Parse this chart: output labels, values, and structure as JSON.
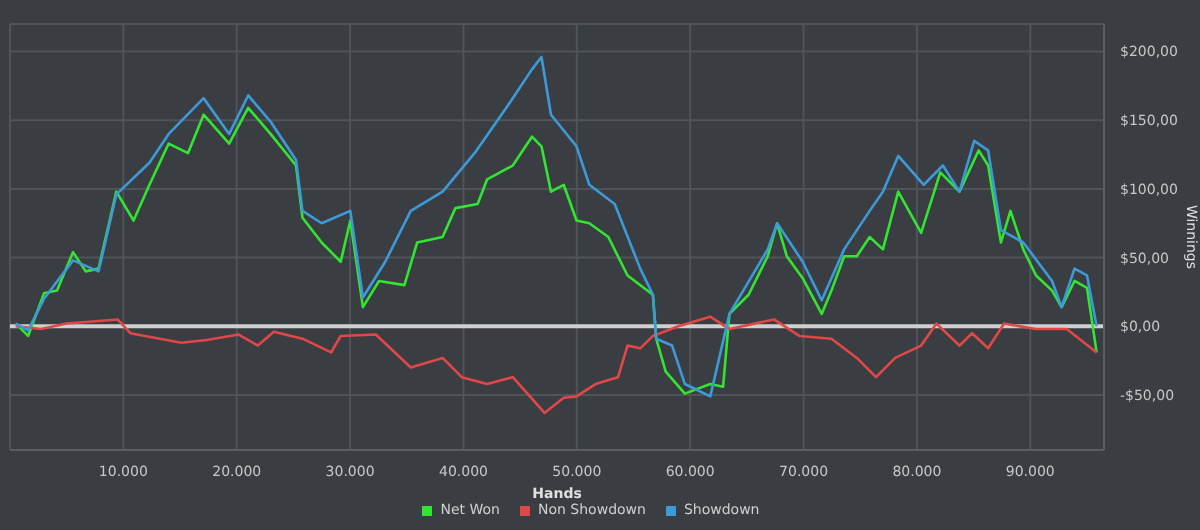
{
  "chart_data": {
    "type": "line",
    "xlabel": "Hands",
    "ylabel": "Winnings",
    "xlim": [
      0,
      96500
    ],
    "ylim": [
      -90,
      220
    ],
    "xticks": [
      {
        "value": 10000,
        "label": "10.000"
      },
      {
        "value": 20000,
        "label": "20.000"
      },
      {
        "value": 30000,
        "label": "30.000"
      },
      {
        "value": 40000,
        "label": "40.000"
      },
      {
        "value": 50000,
        "label": "50.000"
      },
      {
        "value": 60000,
        "label": "60.000"
      },
      {
        "value": 70000,
        "label": "70.000"
      },
      {
        "value": 80000,
        "label": "80.000"
      },
      {
        "value": 90000,
        "label": "90.000"
      }
    ],
    "yticks": [
      {
        "value": -50,
        "label": "-$50,00"
      },
      {
        "value": 0,
        "label": "$0,00"
      },
      {
        "value": 50,
        "label": "$50,00"
      },
      {
        "value": 100,
        "label": "$100,00"
      },
      {
        "value": 150,
        "label": "$150,00"
      },
      {
        "value": 200,
        "label": "$200,00"
      }
    ],
    "grid": true,
    "legend": "bottom",
    "marker": "none",
    "line_style": "solid",
    "ref_lines": [
      {
        "axis": "y",
        "value": 0,
        "color": "#d0d0d0"
      }
    ],
    "series": [
      {
        "name": "Net Won",
        "color": "#33e533",
        "x": [
          500,
          1600,
          3000,
          4150,
          5560,
          6680,
          7810,
          9380,
          10900,
          12300,
          14000,
          15700,
          17080,
          19330,
          21010,
          22980,
          25230,
          25800,
          27490,
          29170,
          30020,
          31130,
          32550,
          34790,
          35920,
          38160,
          39290,
          41250,
          42090,
          44350,
          46040,
          46880,
          47720,
          48840,
          49970,
          51100,
          52780,
          54470,
          56710,
          57000,
          57840,
          59530,
          61770,
          62900,
          63460,
          65150,
          66840,
          67670,
          68520,
          69920,
          71600,
          72460,
          73580,
          74700,
          75830,
          77000,
          78350,
          80370,
          82060,
          83750,
          85440,
          86280,
          87410,
          88250,
          89380,
          90510,
          91920,
          92760,
          93900,
          95000,
          95850
        ],
        "values": [
          2,
          -7,
          24,
          26,
          54,
          40,
          42,
          98,
          77,
          103,
          133,
          126,
          154,
          133,
          159,
          140,
          117,
          79,
          61,
          47,
          77,
          14,
          33,
          30,
          61,
          65,
          86,
          89,
          107,
          117,
          138,
          131,
          98,
          103,
          77,
          75,
          65,
          37,
          23,
          -9,
          -33,
          -49,
          -42,
          -44,
          9,
          23,
          51,
          75,
          51,
          35,
          9,
          26,
          51,
          51,
          65,
          56,
          98,
          68,
          112,
          98,
          128,
          117,
          61,
          84,
          56,
          37,
          26,
          14,
          33,
          28,
          -19
        ]
      },
      {
        "name": "Non Showdown",
        "color": "#e04848",
        "x": [
          500,
          2750,
          4990,
          9490,
          10620,
          15110,
          17360,
          20170,
          21860,
          23270,
          25800,
          28330,
          29170,
          32270,
          35350,
          38160,
          39850,
          42090,
          44350,
          47150,
          48840,
          49970,
          51650,
          53630,
          54470,
          55590,
          56710,
          58950,
          61770,
          63460,
          67390,
          69630,
          72460,
          74700,
          76390,
          78080,
          80370,
          81720,
          83750,
          84870,
          86280,
          87690,
          90510,
          93210,
          95850
        ],
        "values": [
          0,
          -2,
          2,
          5,
          -5,
          -12,
          -10,
          -6,
          -14,
          -4,
          -9,
          -19,
          -7,
          -6,
          -30,
          -23,
          -37,
          -42,
          -37,
          -63,
          -52,
          -51,
          -42,
          -37,
          -14,
          -16,
          -7,
          0,
          7,
          -2,
          5,
          -7,
          -9,
          -23,
          -37,
          -23,
          -14,
          2,
          -14,
          -5,
          -16,
          2,
          -2,
          -2,
          -19
        ]
      },
      {
        "name": "Showdown",
        "color": "#3d9ad9",
        "x": [
          500,
          1600,
          3000,
          5560,
          7810,
          9380,
          12300,
          14000,
          17080,
          19330,
          21010,
          22980,
          25230,
          25800,
          27490,
          30020,
          31130,
          33100,
          35350,
          38160,
          40980,
          43780,
          46040,
          46880,
          47720,
          49970,
          51100,
          53340,
          55590,
          56710,
          57000,
          58400,
          59530,
          61770,
          63460,
          66840,
          67670,
          69920,
          71600,
          73580,
          75830,
          77000,
          78350,
          80600,
          82290,
          83750,
          85050,
          86280,
          87410,
          89380,
          91920,
          92760,
          93900,
          95000,
          95850
        ],
        "values": [
          2,
          -3,
          20,
          48,
          40,
          96,
          119,
          140,
          166,
          140,
          168,
          149,
          121,
          84,
          75,
          84,
          21,
          47,
          84,
          98,
          126,
          159,
          187,
          196,
          154,
          131,
          103,
          89,
          42,
          23,
          -9,
          -14,
          -42,
          -51,
          9,
          56,
          75,
          47,
          19,
          56,
          84,
          98,
          124,
          103,
          117,
          98,
          135,
          128,
          70,
          61,
          33,
          14,
          42,
          37,
          0
        ]
      }
    ]
  }
}
